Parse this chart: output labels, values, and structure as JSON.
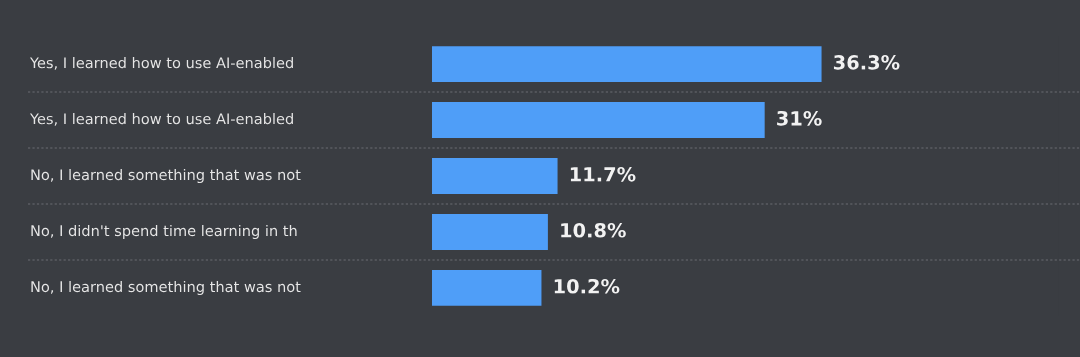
{
  "chart_data": {
    "type": "bar",
    "orientation": "horizontal",
    "categories": [
      "Yes, I learned how to use AI-enabled",
      "Yes, I learned how to use AI-enabled",
      "No, I learned something that was not",
      "No, I didn't spend time learning in th",
      "No, I learned something that was not"
    ],
    "values": [
      36.3,
      31,
      11.7,
      10.8,
      10.2
    ],
    "value_labels": [
      "36.3%",
      "31%",
      "11.7%",
      "10.8%",
      "10.2%"
    ],
    "color": "#4f9ef8",
    "grid": "y"
  }
}
